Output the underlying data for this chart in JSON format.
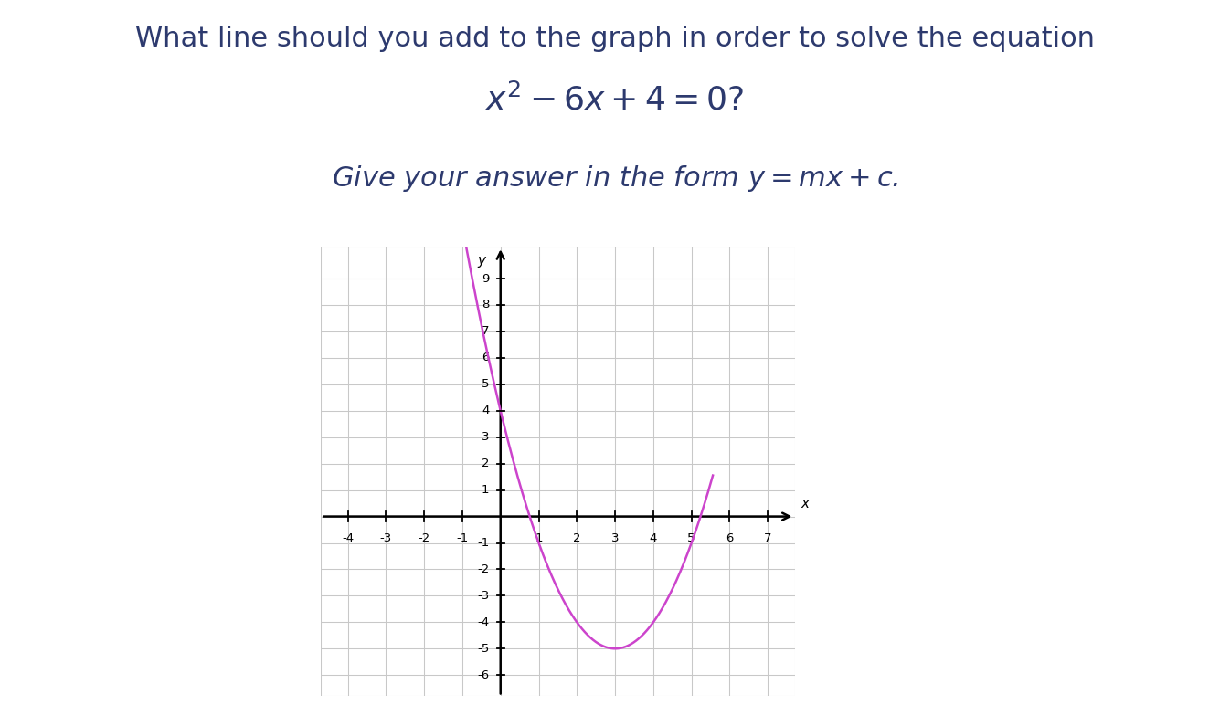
{
  "title_line1": "What line should you add to the graph in order to solve the equation",
  "title_line2": "$x^2 - 6x + 4 = 0$?",
  "subtitle": "Give your answer in the form $y = mx + c$.",
  "curve_color": "#cc44cc",
  "curve_linewidth": 1.8,
  "xlim": [
    -4.7,
    7.7
  ],
  "ylim": [
    -6.8,
    10.2
  ],
  "xticks": [
    -4,
    -3,
    -2,
    -1,
    1,
    2,
    3,
    4,
    5,
    6,
    7
  ],
  "yticks": [
    -6,
    -5,
    -4,
    -3,
    -2,
    -1,
    1,
    2,
    3,
    4,
    5,
    6,
    7,
    8,
    9
  ],
  "grid_xticks": [
    -4,
    -3,
    -2,
    -1,
    0,
    1,
    2,
    3,
    4,
    5,
    6,
    7
  ],
  "grid_yticks": [
    -6,
    -5,
    -4,
    -3,
    -2,
    -1,
    0,
    1,
    2,
    3,
    4,
    5,
    6,
    7,
    8,
    9
  ],
  "grid_color": "#c8c8c8",
  "axis_color": "#000000",
  "background_color": "#ffffff",
  "text_color": "#2d3a6e",
  "xlabel": "$x$",
  "ylabel": "$y$",
  "curve_xmin": -2.1,
  "curve_xmax": 5.56,
  "title1_fontsize": 22,
  "title2_fontsize": 26,
  "subtitle_fontsize": 22,
  "tick_fontsize": 9.5
}
